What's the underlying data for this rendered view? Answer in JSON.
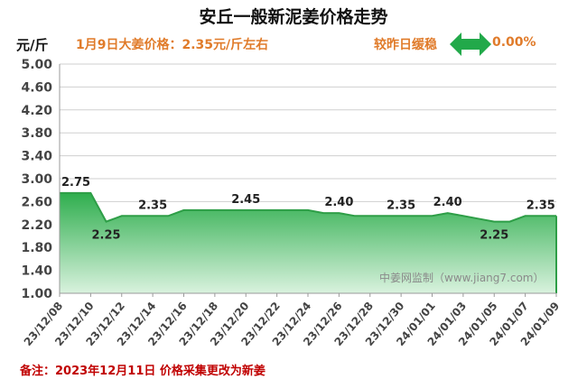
{
  "header": {
    "title": "安丘一般新泥姜价格走势",
    "unit": "元/斤",
    "price_note": "1月9日大姜价格：2.35元/斤左右",
    "change_label": "较昨日缓稳",
    "change_value": "0.00%"
  },
  "watermark": "中姜网监制（www.jiang7.com）",
  "footnote": "备注：2023年12月11日 价格采集更改为新姜",
  "colors": {
    "line": "#2e9e47",
    "fill_top": "#2fae4e",
    "fill_bottom": "#d9f2de",
    "arrow": "#22a94a",
    "accent_text": "#e07b2a",
    "footnote": "#c00000"
  },
  "chart_data": {
    "type": "area",
    "title": "安丘一般新泥姜价格走势",
    "ylabel": "元/斤",
    "ylim": [
      1.0,
      5.0
    ],
    "yticks": [
      "5.00",
      "4.60",
      "4.20",
      "3.80",
      "3.40",
      "3.00",
      "2.60",
      "2.20",
      "1.80",
      "1.40",
      "1.00"
    ],
    "x": [
      "23/12/08",
      "23/12/09",
      "23/12/10",
      "23/12/11",
      "23/12/12",
      "23/12/13",
      "23/12/14",
      "23/12/15",
      "23/12/16",
      "23/12/17",
      "23/12/18",
      "23/12/19",
      "23/12/20",
      "23/12/21",
      "23/12/22",
      "23/12/23",
      "23/12/24",
      "23/12/25",
      "23/12/26",
      "23/12/27",
      "23/12/28",
      "23/12/29",
      "23/12/30",
      "23/12/31",
      "24/01/01",
      "24/01/02",
      "24/01/03",
      "24/01/04",
      "24/01/05",
      "24/01/06",
      "24/01/07",
      "24/01/08",
      "24/01/09"
    ],
    "xtick_labels": [
      "23/12/08",
      "23/12/10",
      "23/12/12",
      "23/12/14",
      "23/12/16",
      "23/12/18",
      "23/12/20",
      "23/12/22",
      "23/12/24",
      "23/12/26",
      "23/12/28",
      "23/12/30",
      "24/01/01",
      "24/01/03",
      "24/01/05",
      "24/01/07",
      "24/01/09"
    ],
    "series": [
      {
        "values": [
          2.75,
          2.75,
          2.75,
          2.25,
          2.35,
          2.35,
          2.35,
          2.35,
          2.45,
          2.45,
          2.45,
          2.45,
          2.45,
          2.45,
          2.45,
          2.45,
          2.45,
          2.4,
          2.4,
          2.35,
          2.35,
          2.35,
          2.35,
          2.35,
          2.35,
          2.4,
          2.35,
          2.3,
          2.25,
          2.25,
          2.35,
          2.35,
          2.35
        ]
      }
    ],
    "data_labels": [
      {
        "x": "23/12/08",
        "text": "2.75"
      },
      {
        "x": "23/12/11",
        "text": "2.25"
      },
      {
        "x": "23/12/14",
        "text": "2.35"
      },
      {
        "x": "23/12/20",
        "text": "2.45"
      },
      {
        "x": "23/12/26",
        "text": "2.40"
      },
      {
        "x": "23/12/30",
        "text": "2.35"
      },
      {
        "x": "24/01/02",
        "text": "2.40"
      },
      {
        "x": "24/01/05",
        "text": "2.25"
      },
      {
        "x": "24/01/08",
        "text": "2.35"
      }
    ],
    "grid": true
  }
}
